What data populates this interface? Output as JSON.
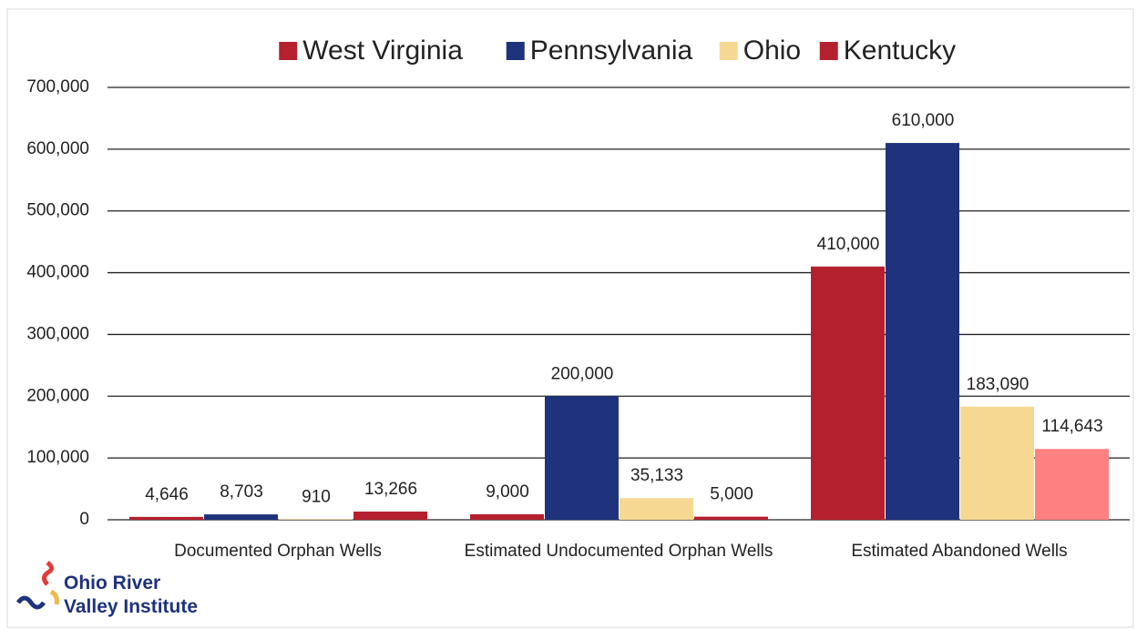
{
  "chart_data": {
    "type": "bar",
    "categories": [
      "Documented Orphan Wells",
      "Estimated Undocumented Orphan Wells",
      "Estimated Abandoned Wells"
    ],
    "series": [
      {
        "name": "West Virginia",
        "color": "#b5202e",
        "values": [
          4646,
          9000,
          410000
        ],
        "value_labels": [
          "4,646",
          "9,000",
          "410,000"
        ]
      },
      {
        "name": "Pennsylvania",
        "color": "#1f327c",
        "values": [
          8703,
          200000,
          610000
        ],
        "value_labels": [
          "8,703",
          "200,000",
          "610,000"
        ]
      },
      {
        "name": "Ohio",
        "color": "#f7d893",
        "values": [
          910,
          35133,
          183090
        ],
        "value_labels": [
          "910",
          "35,133",
          "183,090"
        ]
      },
      {
        "name": "Kentucky",
        "color": "#b5202e",
        "colors": [
          "#b5202e",
          "#b5202e",
          "#ff8080"
        ],
        "values": [
          13266,
          5000,
          114643
        ],
        "value_labels": [
          "13,266",
          "5,000",
          "114,643"
        ]
      }
    ],
    "ylim": [
      0,
      700000
    ],
    "yticks": [
      0,
      {
        "value": 100000,
        "label": "100,000"
      },
      {
        "value": 200000,
        "label": "200,000"
      },
      {
        "value": 300000,
        "label": "300,000"
      },
      {
        "value": 400000,
        "label": "400,000"
      },
      {
        "value": 500000,
        "label": "500,000"
      },
      {
        "value": 600000,
        "label": "600,000"
      },
      {
        "value": 700000,
        "label": "700,000"
      }
    ],
    "grid": true,
    "legend": "top",
    "logo_lines": [
      "Ohio River",
      "Valley Institute"
    ]
  }
}
